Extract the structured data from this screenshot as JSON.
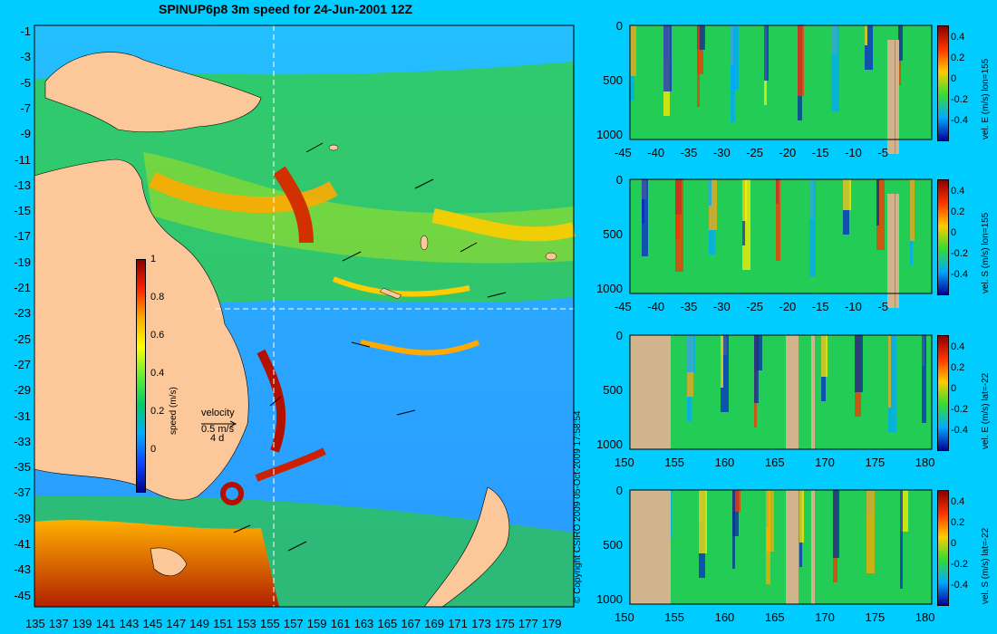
{
  "title": "SPINUP6p8 3m speed for 24-Jun-2001 12Z",
  "copyright": "© Copyright CSIRO 2009   05-Oct-2009 17:58:54",
  "colors": {
    "background": "#00ccff",
    "land": "#fcc89a",
    "section_land": "#d2b48c"
  },
  "map": {
    "x_ticks": [
      "135",
      "137",
      "139",
      "141",
      "143",
      "145",
      "147",
      "149",
      "151",
      "153",
      "155",
      "157",
      "159",
      "161",
      "163",
      "165",
      "167",
      "169",
      "171",
      "173",
      "175",
      "177",
      "179"
    ],
    "y_ticks": [
      "-1",
      "-3",
      "-5",
      "-7",
      "-9",
      "-11",
      "-13",
      "-15",
      "-17",
      "-19",
      "-21",
      "-23",
      "-25",
      "-27",
      "-29",
      "-31",
      "-33",
      "-35",
      "-37",
      "-39",
      "-41",
      "-43",
      "-45"
    ],
    "colorbar": {
      "label": "speed (m/s)",
      "ticks": [
        "1",
        "0.8",
        "0.6",
        "0.4",
        "0.2",
        "0"
      ]
    },
    "velocity_legend": {
      "title": "velocity",
      "speed": "0.5 m/s",
      "duration": "4 d"
    }
  },
  "sections": [
    {
      "id": "u-lon155",
      "label": "vel. E (m/s) lon=155",
      "x_ticks": [
        "-45",
        "-40",
        "-35",
        "-30",
        "-25",
        "-20",
        "-15",
        "-10",
        "-5"
      ],
      "y_ticks": [
        "0",
        "500",
        "1000"
      ],
      "cbar_ticks": [
        "0.4",
        "0.2",
        "0",
        "-0.2",
        "-0.4"
      ]
    },
    {
      "id": "v-lon155",
      "label": "vel. S (m/s) lon=155",
      "x_ticks": [
        "-45",
        "-40",
        "-35",
        "-30",
        "-25",
        "-20",
        "-15",
        "-10",
        "-5"
      ],
      "y_ticks": [
        "0",
        "500",
        "1000"
      ],
      "cbar_ticks": [
        "0.4",
        "0.2",
        "0",
        "-0.2",
        "-0.4"
      ]
    },
    {
      "id": "u-lat22",
      "label": "vel. E (m/s) lat=-22",
      "x_ticks": [
        "150",
        "155",
        "160",
        "165",
        "170",
        "175",
        "180"
      ],
      "y_ticks": [
        "0",
        "500",
        "1000"
      ],
      "cbar_ticks": [
        "0.4",
        "0.2",
        "0",
        "-0.2",
        "-0.4"
      ]
    },
    {
      "id": "v-lat22",
      "label": "vel. S (m/s) lat=-22",
      "x_ticks": [
        "150",
        "155",
        "160",
        "165",
        "170",
        "175",
        "180"
      ],
      "y_ticks": [
        "0",
        "500",
        "1000"
      ],
      "cbar_ticks": [
        "0.4",
        "0.2",
        "0",
        "-0.2",
        "-0.4"
      ]
    }
  ]
}
